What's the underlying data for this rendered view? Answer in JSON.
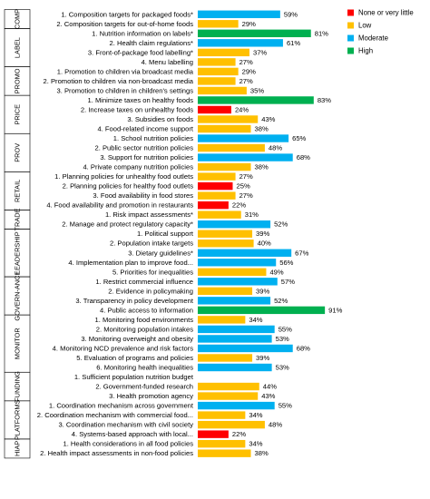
{
  "chart_data": {
    "type": "bar",
    "orientation": "horizontal",
    "value_suffix": "%",
    "xlim": [
      0,
      100
    ],
    "grid": false,
    "legend_position": "top-right",
    "legend": [
      {
        "name": "None or very little",
        "color": "#ff0000"
      },
      {
        "name": "Low",
        "color": "#ffc000"
      },
      {
        "name": "Moderate",
        "color": "#00b0f0"
      },
      {
        "name": "High",
        "color": "#00b050"
      }
    ],
    "groups": [
      {
        "name": "COMP",
        "items": [
          {
            "label": "1. Composition targets for packaged foods*",
            "value": 59,
            "level": "Moderate"
          },
          {
            "label": "2. Composition targets for out-of-home foods",
            "value": 29,
            "level": "Low"
          }
        ]
      },
      {
        "name": "LABEL",
        "items": [
          {
            "label": "1. Nutrition information on labels*",
            "value": 81,
            "level": "High"
          },
          {
            "label": "2. Health claim regulations*",
            "value": 61,
            "level": "Moderate"
          },
          {
            "label": "3. Front-of-package food labelling*",
            "value": 37,
            "level": "Low"
          },
          {
            "label": "4. Menu labelling",
            "value": 27,
            "level": "Low"
          }
        ]
      },
      {
        "name": "PROMO",
        "items": [
          {
            "label": "1. Promotion to children via broadcast media",
            "value": 29,
            "level": "Low"
          },
          {
            "label": "2. Promotion to children via non-broadcast media",
            "value": 27,
            "level": "Low"
          },
          {
            "label": "3. Promotion to children in children's settings",
            "value": 35,
            "level": "Low"
          }
        ]
      },
      {
        "name": "PRICE",
        "items": [
          {
            "label": "1. Minimize taxes on healthy foods",
            "value": 83,
            "level": "High"
          },
          {
            "label": "2. Increase taxes on unhealthy foods",
            "value": 24,
            "level": "None or very little"
          },
          {
            "label": "3. Subsidies on foods",
            "value": 43,
            "level": "Low"
          },
          {
            "label": "4. Food-related income support",
            "value": 38,
            "level": "Low"
          }
        ]
      },
      {
        "name": "PROV",
        "items": [
          {
            "label": "1. School nutrition policies",
            "value": 65,
            "level": "Moderate"
          },
          {
            "label": "2. Public sector nutrition policies",
            "value": 48,
            "level": "Low"
          },
          {
            "label": "3. Support for nutrition policies",
            "value": 68,
            "level": "Moderate"
          },
          {
            "label": "4. Private company nutrition policies",
            "value": 38,
            "level": "Low"
          }
        ]
      },
      {
        "name": "RETAIL",
        "items": [
          {
            "label": "1. Planning policies for unhealthy food outlets",
            "value": 27,
            "level": "Low"
          },
          {
            "label": "2. Planning policies for healthy food outlets",
            "value": 25,
            "level": "None or very little"
          },
          {
            "label": "3. Food availability in food stores",
            "value": 27,
            "level": "Low"
          },
          {
            "label": "4. Food availability and promotion in restaurants",
            "value": 22,
            "level": "None or very little"
          }
        ]
      },
      {
        "name": "TRADE",
        "items": [
          {
            "label": "1. Risk impact assessments*",
            "value": 31,
            "level": "Low"
          },
          {
            "label": "2. Manage and protect regulatory capacity*",
            "value": 52,
            "level": "Moderate"
          }
        ]
      },
      {
        "name": "LEADERSHIP",
        "items": [
          {
            "label": "1. Political support",
            "value": 39,
            "level": "Low"
          },
          {
            "label": "2. Population intake targets",
            "value": 40,
            "level": "Low"
          },
          {
            "label": "3. Dietary guidelines*",
            "value": 67,
            "level": "Moderate"
          },
          {
            "label": "4. Implementation plan to improve food...",
            "value": 56,
            "level": "Moderate"
          },
          {
            "label": "5. Priorities for inequalities",
            "value": 49,
            "level": "Low"
          }
        ]
      },
      {
        "name": "GOVERN-ANCE",
        "items": [
          {
            "label": "1. Restrict commercial influence",
            "value": 57,
            "level": "Moderate"
          },
          {
            "label": "2. Evidence in policymaking",
            "value": 39,
            "level": "Low"
          },
          {
            "label": "3. Transparency in policy development",
            "value": 52,
            "level": "Moderate"
          },
          {
            "label": "4. Public access to information",
            "value": 91,
            "level": "High"
          }
        ]
      },
      {
        "name": "MONITOR",
        "items": [
          {
            "label": "1. Monitoring food environments",
            "value": 34,
            "level": "Low"
          },
          {
            "label": "2. Monitoring population intakes",
            "value": 55,
            "level": "Moderate"
          },
          {
            "label": "3. Monitoring overweight and obesity",
            "value": 53,
            "level": "Moderate"
          },
          {
            "label": "4. Monitoring NCD prevalence and risk factors",
            "value": 68,
            "level": "Moderate"
          },
          {
            "label": "5. Evaluation of programs and policies",
            "value": 39,
            "level": "Low"
          },
          {
            "label": "6. Monitoring health inequalities",
            "value": 53,
            "level": "Moderate"
          }
        ]
      },
      {
        "name": "FUNDING",
        "items": [
          {
            "label": "1. Sufficient population nutrition budget",
            "value": null,
            "level": "None or very little"
          },
          {
            "label": "2. Government-funded research",
            "value": 44,
            "level": "Low"
          },
          {
            "label": "3. Health promotion agency",
            "value": 43,
            "level": "Low"
          }
        ]
      },
      {
        "name": "PLATFORMS",
        "items": [
          {
            "label": "1. Coordination mechanism across government",
            "value": 55,
            "level": "Moderate"
          },
          {
            "label": "2. Coordination mechanism with commercial food...",
            "value": 34,
            "level": "Low"
          },
          {
            "label": "3. Coordination mechanism with civil society",
            "value": 48,
            "level": "Low"
          },
          {
            "label": "4. Systems-based approach with local...",
            "value": 22,
            "level": "None or very little"
          }
        ]
      },
      {
        "name": "HIAP",
        "items": [
          {
            "label": "1. Health considerations in all food policies",
            "value": 34,
            "level": "Low"
          },
          {
            "label": "2. Health impact assessments in non-food policies",
            "value": 38,
            "level": "Low"
          }
        ]
      }
    ]
  }
}
